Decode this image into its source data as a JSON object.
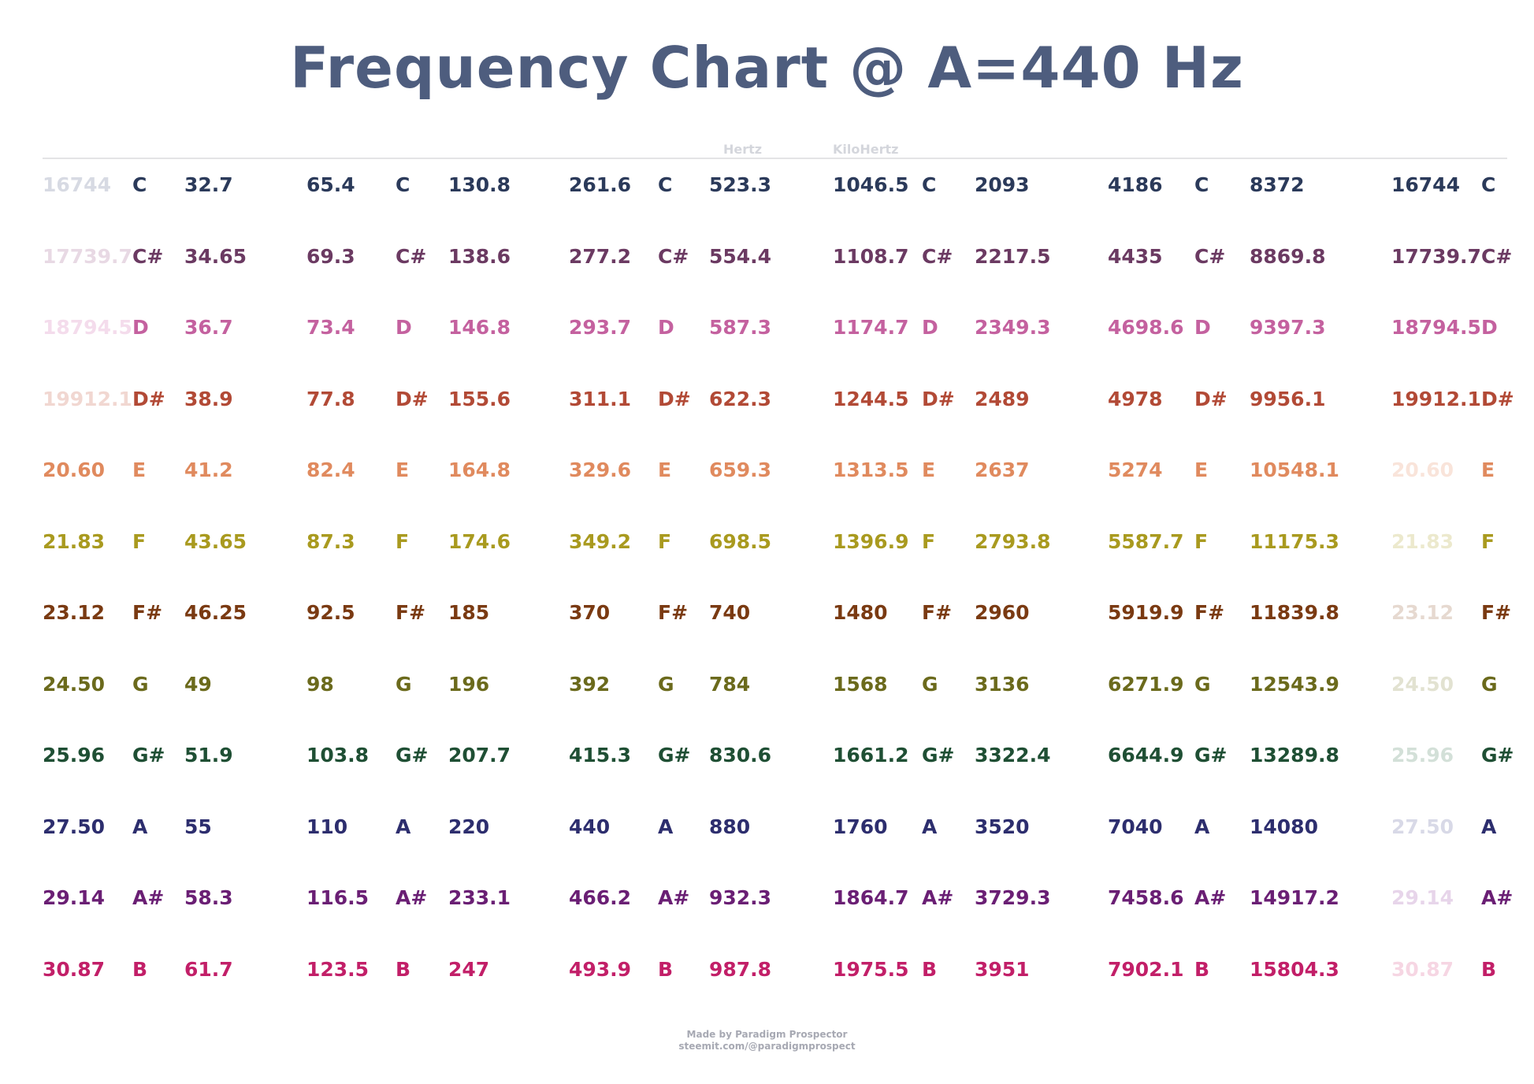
{
  "title": "Frequency Chart @ A=440 Hz",
  "units": {
    "hertz": "Hertz",
    "kilohertz": "KiloHertz"
  },
  "rows": [
    {
      "color": "#2b3a5a",
      "faded": "#d7dae3",
      "note": "C",
      "values": [
        "16744",
        "32.7",
        "65.4",
        "130.8",
        "261.6",
        "523.3",
        "1046.5",
        "2093",
        "4186",
        "8372",
        "16744"
      ]
    },
    {
      "color": "#6b3a62",
      "faded": "#e8d9e4",
      "note": "C#",
      "values": [
        "17739.7",
        "34.65",
        "69.3",
        "138.6",
        "277.2",
        "554.4",
        "1108.7",
        "2217.5",
        "4435",
        "8869.8",
        "17739.7"
      ]
    },
    {
      "color": "#c4619f",
      "faded": "#f4dcec",
      "note": "D",
      "values": [
        "18794.5",
        "36.7",
        "73.4",
        "146.8",
        "293.7",
        "587.3",
        "1174.7",
        "2349.3",
        "4698.6",
        "9397.3",
        "18794.5"
      ]
    },
    {
      "color": "#b24a36",
      "faded": "#f1d7d1",
      "note": "D#",
      "values": [
        "19912.1",
        "38.9",
        "77.8",
        "155.6",
        "311.1",
        "622.3",
        "1244.5",
        "2489",
        "4978",
        "9956.1",
        "19912.1"
      ]
    },
    {
      "color": "#e08a5e",
      "faded": "#f9e4da",
      "note": "E",
      "values": [
        "20.60",
        "41.2",
        "82.4",
        "164.8",
        "329.6",
        "659.3",
        "1313.5",
        "2637",
        "5274",
        "10548.1",
        "20.60"
      ]
    },
    {
      "color": "#a99a1f",
      "faded": "#ece9cd",
      "note": "F",
      "values": [
        "21.83",
        "43.65",
        "87.3",
        "174.6",
        "349.2",
        "698.5",
        "1396.9",
        "2793.8",
        "5587.7",
        "11175.3",
        "21.83"
      ]
    },
    {
      "color": "#7a3a12",
      "faded": "#e6d9d0",
      "note": "F#",
      "values": [
        "23.12",
        "46.25",
        "92.5",
        "185",
        "370",
        "740",
        "1480",
        "2960",
        "5919.9",
        "11839.8",
        "23.12"
      ]
    },
    {
      "color": "#6b6a1c",
      "faded": "#e2e2d1",
      "note": "G",
      "values": [
        "24.50",
        "49",
        "98",
        "196",
        "392",
        "784",
        "1568",
        "3136",
        "6271.9",
        "12543.9",
        "24.50"
      ]
    },
    {
      "color": "#1f4f34",
      "faded": "#d3e0d8",
      "note": "G#",
      "values": [
        "25.96",
        "51.9",
        "103.8",
        "207.7",
        "415.3",
        "830.6",
        "1661.2",
        "3322.4",
        "6644.9",
        "13289.8",
        "25.96"
      ]
    },
    {
      "color": "#2d2e6e",
      "faded": "#d8d9e7",
      "note": "A",
      "values": [
        "27.50",
        "55",
        "110",
        "220",
        "440",
        "880",
        "1760",
        "3520",
        "7040",
        "14080",
        "27.50"
      ]
    },
    {
      "color": "#6a1f74",
      "faded": "#e7d5ea",
      "note": "A#",
      "values": [
        "29.14",
        "58.3",
        "116.5",
        "233.1",
        "466.2",
        "932.3",
        "1864.7",
        "3729.3",
        "7458.6",
        "14917.2",
        "29.14"
      ]
    },
    {
      "color": "#c21f68",
      "faded": "#f6d6e3",
      "note": "B",
      "values": [
        "30.87",
        "61.7",
        "123.5",
        "247",
        "493.9",
        "987.8",
        "1975.5",
        "3951",
        "7902.1",
        "15804.3",
        "30.87"
      ]
    }
  ],
  "footer": {
    "line1": "Made by Paradigm Prospector",
    "line2": "steemit.com/@paradigmprospect"
  }
}
